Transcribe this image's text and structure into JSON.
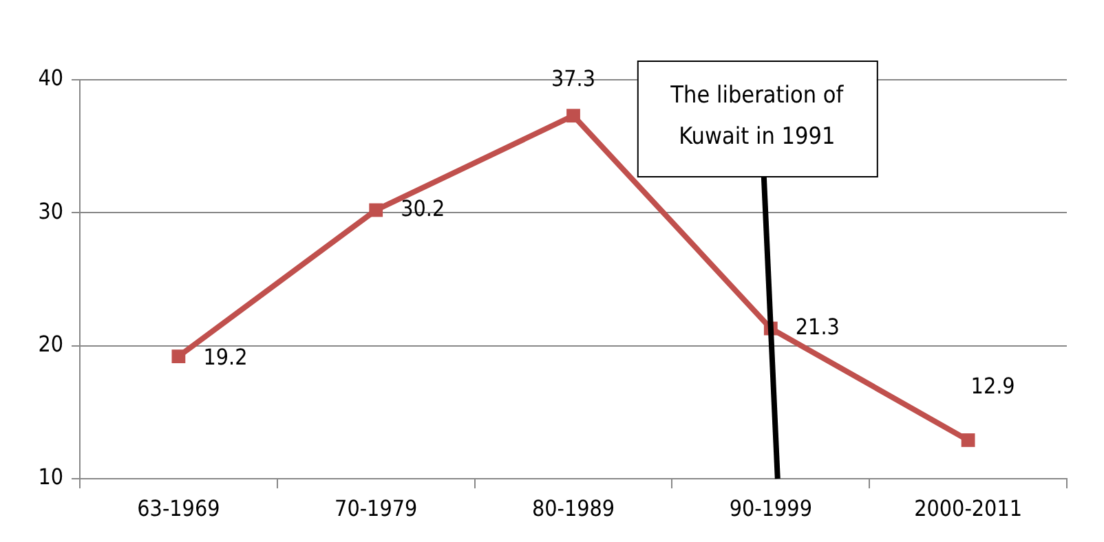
{
  "chart_data": {
    "type": "line",
    "categories": [
      "63-1969",
      "70-1979",
      "80-1989",
      "90-1999",
      "2000-2011"
    ],
    "series": [
      {
        "color": "#c0504d",
        "values": [
          19.2,
          30.2,
          37.3,
          21.3,
          12.9
        ]
      }
    ],
    "ylim": [
      10,
      40
    ],
    "yticks": [
      10,
      20,
      30,
      40
    ],
    "grid": "y",
    "legend": false,
    "marker": "square",
    "line_style": "solid",
    "data_labels": true,
    "annotations": [
      "The liberation of Kuwait in 1991"
    ]
  }
}
